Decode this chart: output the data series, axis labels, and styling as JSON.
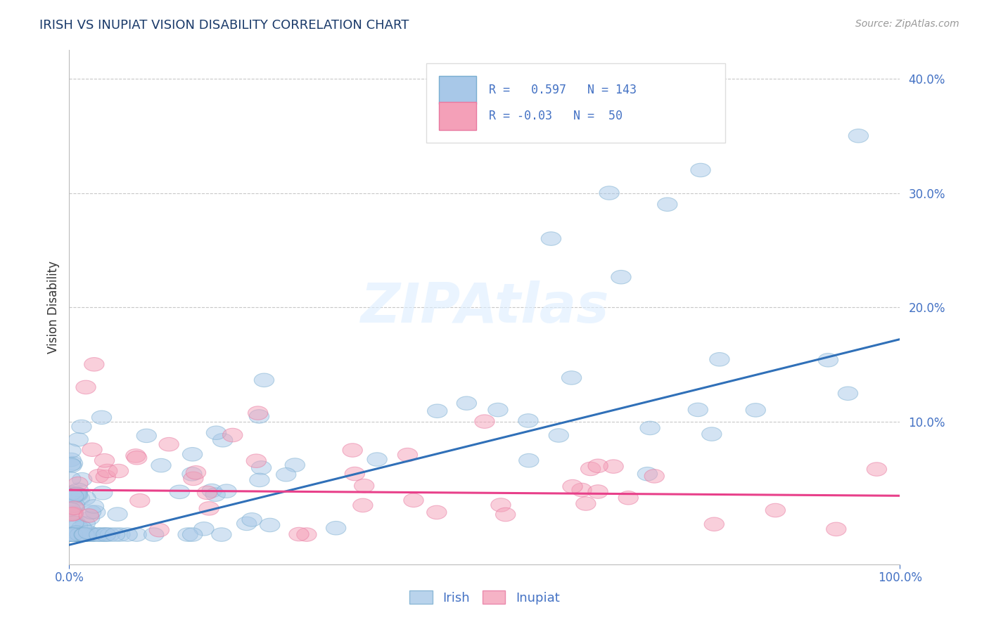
{
  "title": "IRISH VS INUPIAT VISION DISABILITY CORRELATION CHART",
  "source": "Source: ZipAtlas.com",
  "ylabel": "Vision Disability",
  "xlim": [
    0.0,
    1.0
  ],
  "ylim": [
    -0.025,
    0.425
  ],
  "irish_color": "#a8c8e8",
  "inupiat_color": "#f4a0b8",
  "irish_edge_color": "#7aaed0",
  "inupiat_edge_color": "#e878a0",
  "irish_line_color": "#3070b8",
  "inupiat_line_color": "#e8408a",
  "irish_R": 0.597,
  "irish_N": 143,
  "inupiat_R": -0.03,
  "inupiat_N": 50,
  "legend_irish_label": "Irish",
  "legend_inupiat_label": "Inupiat",
  "watermark": "ZIPAtlas",
  "background_color": "#ffffff",
  "grid_color": "#c8c8c8",
  "title_color": "#1a3a6a",
  "axis_color": "#4472c4",
  "irish_slope": 0.18,
  "irish_intercept": -0.008,
  "inupiat_slope": -0.005,
  "inupiat_intercept": 0.04,
  "yticks": [
    0.1,
    0.2,
    0.3,
    0.4
  ],
  "ytick_labels": [
    "10.0%",
    "20.0%",
    "30.0%",
    "40.0%"
  ]
}
